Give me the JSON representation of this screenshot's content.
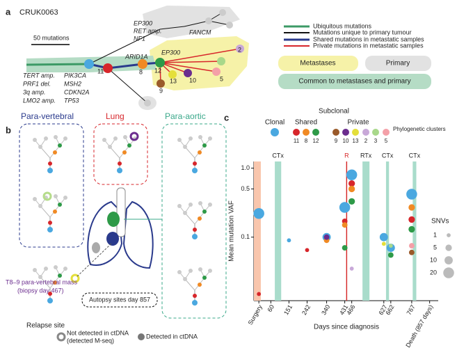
{
  "panel_a": {
    "label": "a",
    "title": "CRUK0063",
    "scale_label": "50 mutations",
    "gene_labels": [
      "EP300",
      "RET amp.",
      "NF1",
      "FANCM",
      "ARID1A",
      "EP300",
      "TERT amp.",
      "PRF1 del.",
      "3q amp.",
      "LMO2 amp.",
      "PIK3CA",
      "MSH2",
      "CDKN2A",
      "TP53"
    ],
    "node_labels": [
      "11",
      "8",
      "12",
      "2",
      "13",
      "10",
      "5",
      "9"
    ],
    "legend": [
      "Ubiquitous mutations",
      "Mutations unique to primary tumour",
      "Shared mutations in metastatic samples",
      "Private mutations in metastatic samples"
    ],
    "boxes": [
      "Metastases",
      "Primary",
      "Common to metastases and primary"
    ]
  },
  "panel_b": {
    "label": "b",
    "sites": [
      "Para-vertebral",
      "Lung",
      "Para-aortic"
    ],
    "biopsy": [
      "T8–9 para-vertebral mass",
      "(biopsy day 467)"
    ],
    "autopsy": "Autopsy sites day 857",
    "relapse": "Relapse site",
    "legend_not": [
      "Not detected in ctDNA",
      "(detected M-seq)"
    ],
    "legend_detected": "Detected in ctDNA"
  },
  "chart_data": {
    "type": "scatter",
    "label": "c",
    "xlabel": "Days since diagnosis",
    "ylabel": "Mean mutation VAF",
    "subclonal_label": "Subclonal",
    "shared_label": "Shared",
    "private_label": "Private",
    "clusters_label": "Phylogenetic clusters",
    "xlim": [
      -25,
      900
    ],
    "ylim": [
      0.012,
      1.25
    ],
    "log_y": true,
    "xticks": [
      {
        "value": 0,
        "label": "Surgery"
      },
      60,
      151,
      242,
      340,
      431,
      466,
      627,
      662,
      767,
      {
        "value": 857,
        "label": "Death (857 days)"
      }
    ],
    "yticks": [
      0.1,
      0.5,
      {
        "value": 1,
        "label": "1.0"
      }
    ],
    "treatments": [
      {
        "start": -25,
        "end": 10,
        "color": "#f9c6ad"
      },
      {
        "label": "CTx",
        "start": 80,
        "end": 112,
        "color": "#a9dccb"
      },
      {
        "label": "R",
        "start": 438,
        "end": 443,
        "color": "#d62728"
      },
      {
        "label": "RTx",
        "start": 520,
        "end": 555,
        "color": "#a9dccb"
      },
      {
        "label": "CTx",
        "start": 638,
        "end": 653,
        "color": "#a9dccb"
      },
      {
        "label": "CTx",
        "start": 772,
        "end": 790,
        "color": "#a9dccb"
      }
    ],
    "size_legend": {
      "title": "SNVs",
      "sizes": [
        1,
        5,
        10,
        20
      ]
    },
    "series": [
      {
        "name": "Clonal",
        "color": "#4aa8e0",
        "x": [
          0,
          151,
          340,
          431,
          466,
          627,
          662,
          767
        ],
        "values": [
          0.22,
          0.09,
          0.1,
          0.27,
          0.8,
          0.1,
          0.07,
          0.42
        ],
        "sizes": [
          20,
          1,
          10,
          20,
          20,
          10,
          10,
          20
        ]
      },
      {
        "name": "11",
        "color": "#d7262b",
        "x": [
          0,
          242,
          431,
          466,
          767
        ],
        "values": [
          0.015,
          0.065,
          0.17,
          0.6,
          0.18
        ],
        "sizes": [
          1,
          1,
          3,
          5,
          5
        ]
      },
      {
        "name": "8",
        "color": "#f08a24",
        "x": [
          340,
          431,
          466,
          767
        ],
        "values": [
          0.09,
          0.15,
          0.5,
          0.27
        ],
        "sizes": [
          3,
          3,
          5,
          5
        ]
      },
      {
        "name": "12",
        "color": "#2e9a48",
        "x": [
          431,
          466,
          662,
          767
        ],
        "values": [
          0.07,
          0.33,
          0.055,
          0.13
        ],
        "sizes": [
          3,
          5,
          3,
          5
        ]
      },
      {
        "name": "9",
        "color": "#9a5a2a",
        "x": [
          767
        ],
        "values": [
          0.06
        ],
        "sizes": [
          3
        ]
      },
      {
        "name": "10",
        "color": "#6b2d8e",
        "x": [
          340
        ],
        "values": [
          0.1
        ],
        "sizes": [
          3
        ]
      },
      {
        "name": "13",
        "color": "#e4df3a",
        "x": [
          627
        ],
        "values": [
          0.08
        ],
        "sizes": [
          1
        ]
      },
      {
        "name": "2",
        "color": "#c8a8d8",
        "x": [
          466
        ],
        "values": [
          0.035
        ],
        "sizes": [
          1
        ]
      },
      {
        "name": "3",
        "color": "#a8d88a",
        "x": [
          662
        ],
        "values": [
          0.075
        ],
        "sizes": [
          1
        ]
      },
      {
        "name": "5",
        "color": "#f4a0a8",
        "x": [
          767
        ],
        "values": [
          0.075
        ],
        "sizes": [
          3
        ]
      }
    ]
  }
}
